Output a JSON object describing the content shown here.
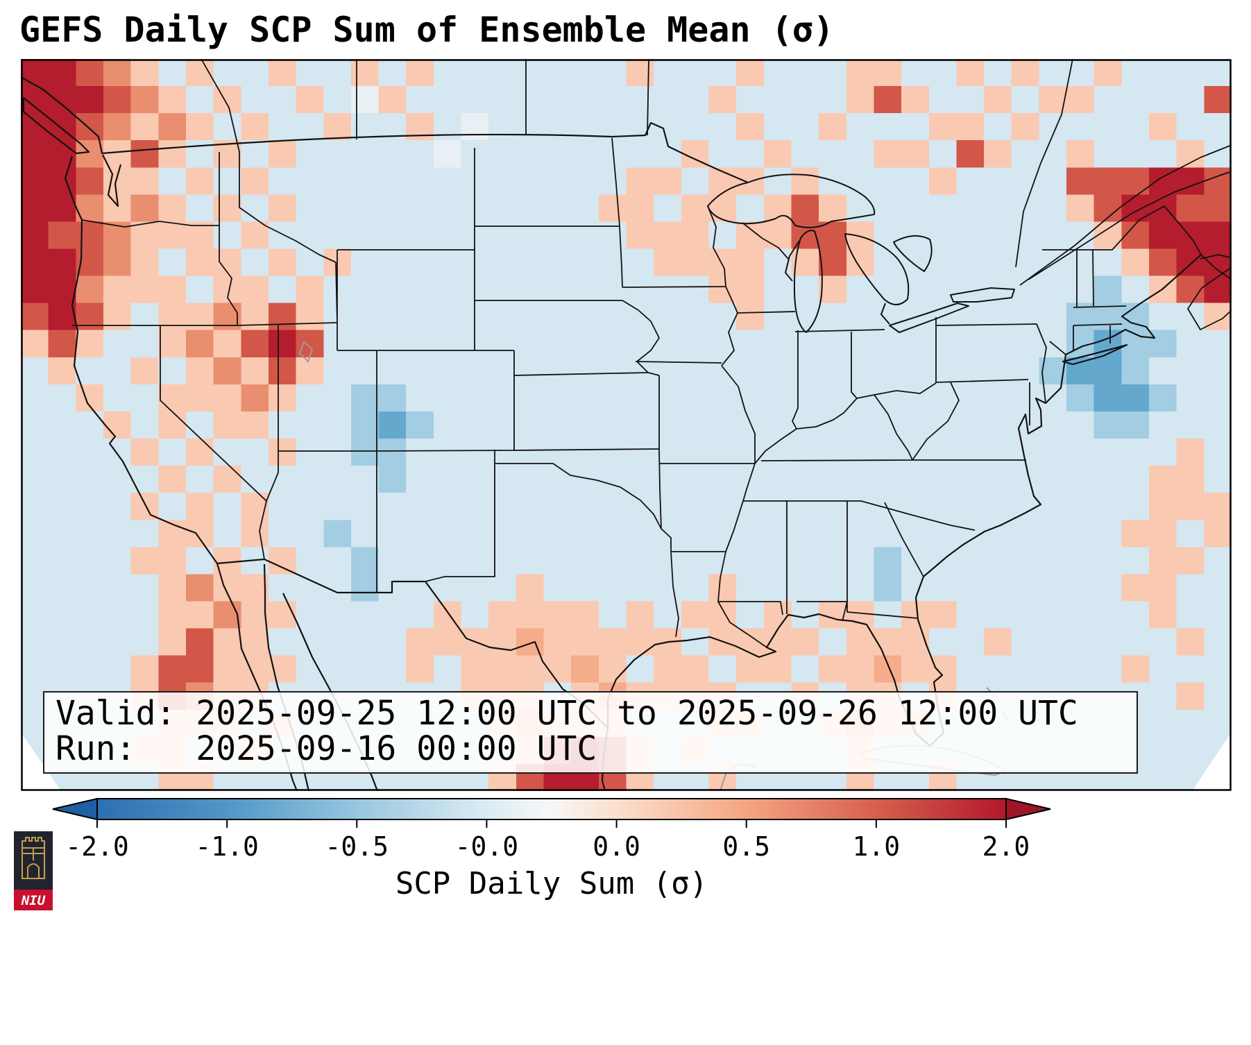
{
  "title": "GEFS Daily SCP Sum of Ensemble Mean (σ)",
  "info_box": {
    "valid_line": "Valid: 2025-09-25 12:00 UTC to 2025-09-26 12:00 UTC",
    "run_line": "Run:   2025-09-16 00:00 UTC"
  },
  "colorbar": {
    "label": "SCP Daily Sum (σ)",
    "ticks": [
      "-2.0",
      "-1.0",
      "-0.5",
      "-0.0",
      "0.0",
      "0.5",
      "1.0",
      "2.0"
    ],
    "extend": "both",
    "left_extend_color": "#1f5fa3",
    "right_extend_color": "#9e1527",
    "gradient": [
      [
        "0%",
        "#2c6fb0"
      ],
      [
        "14.29%",
        "#5097c6"
      ],
      [
        "28.57%",
        "#97c7df"
      ],
      [
        "42.86%",
        "#dcebf3"
      ],
      [
        "50%",
        "#f7f7f7"
      ],
      [
        "57.14%",
        "#fbe0cc"
      ],
      [
        "71.43%",
        "#f4a582"
      ],
      [
        "85.71%",
        "#d6604d"
      ],
      [
        "100%",
        "#b2182b"
      ]
    ]
  },
  "logo": {
    "text": "NIU",
    "background": "#20242e",
    "band_color": "#c8102e",
    "castle_color": "#c69f4e"
  },
  "chart_data": {
    "type": "heatmap",
    "title": "GEFS Daily SCP Sum of Ensemble Mean (σ)",
    "variable": "SCP Daily Sum (σ)",
    "colorbar_ticks": [
      -2.0,
      -1.0,
      -0.5,
      -0.0,
      0.0,
      0.5,
      1.0,
      2.0
    ],
    "value_legend": {
      ".": -0.18,
      ",": -0.08,
      "w": 0.05,
      "o": 0.33,
      "m": 0.55,
      "O": 0.8,
      "r": 1.3,
      "R": 1.95,
      "b": -0.5,
      "B": -0.95,
      "D": -1.7
    },
    "grid_shape": [
      27,
      44
    ],
    "grid_rows": [
      [
        "RRrO",
        "o.o.",
        ".o..",
        "o.o.",
        "....",
        "..o.",
        "..o.",
        "..oo",
        "..o.",
        "o..o",
        "...."
      ],
      [
        "RRRr",
        "Oo.o",
        "..o.",
        ",o..",
        "....",
        "....",
        ".o..",
        "..or",
        "o..o",
        ".oo.",
        "...r"
      ],
      [
        "RRrO",
        "oOo.",
        "o..o",
        "..o.",
        ",...",
        "....",
        "..o.",
        ".o..",
        ".oo.",
        "o...",
        ".o.."
      ],
      [
        "RROo",
        "ro.o",
        ".o..",
        "...,",
        "....",
        "....",
        "o..o",
        "...o",
        "o.ro",
        "..o.",
        "..o."
      ],
      [
        "RRro",
        "o.o.",
        "o...",
        "....",
        "....",
        "..oo",
        ".oo.",
        "o...",
        ".o..",
        "..rr",
        "rRRr"
      ],
      [
        "RROo",
        "Oo.o",
        ".o..",
        "....",
        "....",
        ".oo.",
        "oo.o",
        "ro..",
        "....",
        "..or",
        "RRrr"
      ],
      [
        "RrrO",
        "ooo.",
        "o...",
        "....",
        "....",
        "..oo",
        "o.oo",
        "rro.",
        "....",
        "...o",
        "rRRR"
      ],
      [
        "RRrO",
        "o.oo",
        ".o.o",
        "....",
        "....",
        "...o",
        "ooo.",
        "oro.",
        "....",
        "....",
        "orRR"
      ],
      [
        "RROo",
        "oo.o",
        "o.o.",
        "....",
        "....",
        "....",
        ".oo.",
        ".o..",
        "....",
        "...b",
        ".orR"
      ],
      [
        "rRro",
        ".ooO",
        "oro.",
        "....",
        "....",
        "....",
        "..o.",
        "....",
        "....",
        "..bb",
        "b..o"
      ],
      [
        "oro.",
        ".oOo",
        "rRr.",
        "....",
        "....",
        "....",
        "....",
        "....",
        "....",
        "..bB",
        "bb.."
      ],
      [
        ".o..",
        "o.oO",
        "oro.",
        "....",
        "....",
        "....",
        "....",
        "....",
        "....",
        ".bBB",
        "b..."
      ],
      [
        "..o.",
        ".ooo",
        "Oo..",
        "bb..",
        "....",
        "....",
        "....",
        "....",
        "....",
        "..bB",
        "Bb.."
      ],
      [
        "...o",
        ".o.o",
        "o...",
        "bBb.",
        "....",
        "....",
        "....",
        "....",
        "....",
        "...b",
        "b..."
      ],
      [
        "....",
        "o.o.",
        ".o..",
        "bb..",
        "....",
        "....",
        "....",
        "....",
        "....",
        "....",
        "..o."
      ],
      [
        "....",
        ".o.o",
        "....",
        ".b..",
        "....",
        "....",
        "....",
        "....",
        "....",
        "....",
        ".oo."
      ],
      [
        "....",
        "o.o.",
        "o...",
        "....",
        "....",
        "....",
        "....",
        "....",
        "....",
        "....",
        ".ooo"
      ],
      [
        "....",
        ".oo.",
        "o..b",
        "....",
        "....",
        "....",
        "....",
        "....",
        "....",
        "....",
        "oo.o"
      ],
      [
        "....",
        "oo.o",
        ".o..",
        "b...",
        "....",
        "....",
        "....",
        "...b",
        "....",
        "....",
        ".oo."
      ],
      [
        "....",
        ".oOo",
        "o...",
        "b...",
        "..o.",
        "....",
        ".o..",
        "...b",
        "....",
        "....",
        "oo.."
      ],
      [
        "....",
        ".ooO",
        "oo..",
        "...o",
        ".ooo",
        "o.o.",
        "oo.o",
        ".oo.",
        "oo..",
        "....",
        ".o.."
      ],
      [
        "....",
        ".oro",
        "o...",
        "..oo",
        "oomo",
        "oooo",
        ".ooo",
        "o.oo",
        "o..o",
        "....",
        "..o."
      ],
      [
        "....",
        "orro",
        "oo..",
        "..o.",
        "oooo",
        "mo.o",
        "o.oo",
        ".oom",
        "oo..",
        "....",
        "o..."
      ],
      [
        "....",
        "orOo",
        "o...",
        "....",
        "ooo.",
        "omoo",
        "oo..",
        "o.oo",
        ".o..",
        "....",
        "..o."
      ],
      [
        "....",
        ".ooo",
        ".o..",
        "....",
        ".omo",
        "oo..",
        ".oo.",
        ".omo",
        "o...",
        "....",
        "...."
      ],
      [
        "....",
        "oo..",
        "o...",
        "....",
        "..or",
        "Rro.",
        "o...",
        "..o.",
        "....",
        "....",
        "...."
      ],
      [
        "....",
        ".oo.",
        "....",
        "....",
        ".orR",
        "Rro.",
        ".o..",
        "..o.",
        ".o..",
        "....",
        "...."
      ]
    ],
    "colormap_stops": [
      [
        -2.6,
        "#053061"
      ],
      [
        -2.0,
        "#2166ac"
      ],
      [
        -1.2,
        "#4393c3"
      ],
      [
        -0.6,
        "#92c5de"
      ],
      [
        -0.2,
        "#d1e5f0"
      ],
      [
        0.0,
        "#f7f7f7"
      ],
      [
        0.2,
        "#fddbc7"
      ],
      [
        0.6,
        "#f4a582"
      ],
      [
        1.2,
        "#d6604d"
      ],
      [
        2.0,
        "#b2182b"
      ],
      [
        2.6,
        "#67001f"
      ]
    ]
  }
}
